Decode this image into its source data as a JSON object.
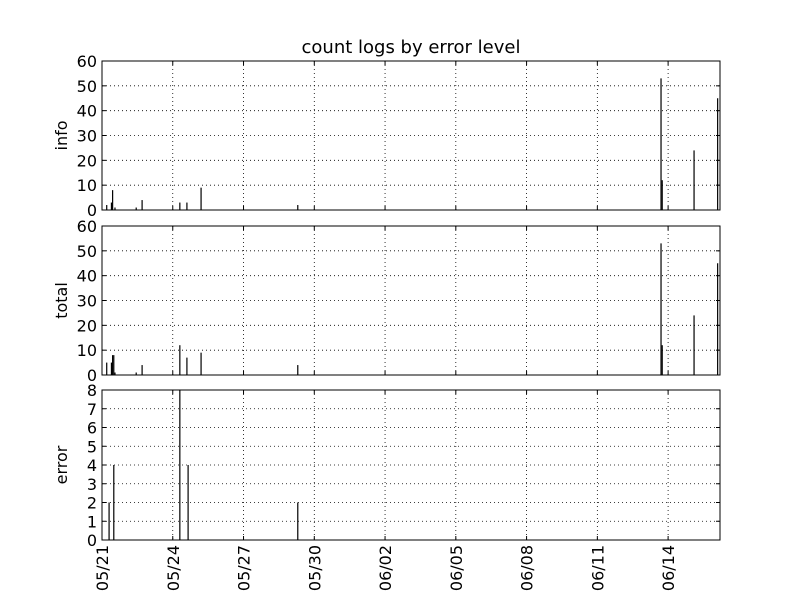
{
  "chart_data": {
    "type": "bar",
    "title": "count logs by error level",
    "x_start": "2015-05-21",
    "x_ticks": [
      "05/21",
      "05/24",
      "05/27",
      "05/30",
      "06/02",
      "06/05",
      "06/08",
      "06/11",
      "06/14"
    ],
    "grid": true,
    "panels": [
      {
        "ylabel": "info",
        "ylim": [
          0,
          60
        ],
        "yticks": [
          "0",
          "10",
          "20",
          "30",
          "40",
          "50",
          "60"
        ],
        "points": [
          {
            "day": 0.2,
            "value": 2
          },
          {
            "day": 0.4,
            "value": 3
          },
          {
            "day": 0.45,
            "value": 8
          },
          {
            "day": 0.55,
            "value": 1
          },
          {
            "day": 1.45,
            "value": 1
          },
          {
            "day": 1.7,
            "value": 4
          },
          {
            "day": 3.3,
            "value": 3
          },
          {
            "day": 3.6,
            "value": 3
          },
          {
            "day": 4.2,
            "value": 9
          },
          {
            "day": 8.3,
            "value": 2
          },
          {
            "day": 23.7,
            "value": 53
          },
          {
            "day": 23.75,
            "value": 12
          },
          {
            "day": 25.1,
            "value": 24
          },
          {
            "day": 26.1,
            "value": 45
          }
        ]
      },
      {
        "ylabel": "total",
        "ylim": [
          0,
          60
        ],
        "yticks": [
          "0",
          "10",
          "20",
          "30",
          "40",
          "50",
          "60"
        ],
        "points": [
          {
            "day": 0.2,
            "value": 5
          },
          {
            "day": 0.4,
            "value": 5
          },
          {
            "day": 0.45,
            "value": 8
          },
          {
            "day": 0.5,
            "value": 8
          },
          {
            "day": 0.55,
            "value": 1
          },
          {
            "day": 1.45,
            "value": 1
          },
          {
            "day": 1.7,
            "value": 4
          },
          {
            "day": 3.3,
            "value": 12
          },
          {
            "day": 3.6,
            "value": 7
          },
          {
            "day": 4.2,
            "value": 9
          },
          {
            "day": 8.3,
            "value": 4
          },
          {
            "day": 23.7,
            "value": 53
          },
          {
            "day": 23.75,
            "value": 12
          },
          {
            "day": 25.1,
            "value": 24
          },
          {
            "day": 26.1,
            "value": 45
          }
        ]
      },
      {
        "ylabel": "error",
        "ylim": [
          0,
          8
        ],
        "yticks": [
          "0",
          "1",
          "2",
          "3",
          "4",
          "5",
          "6",
          "7",
          "8"
        ],
        "points": [
          {
            "day": 0.3,
            "value": 2
          },
          {
            "day": 0.5,
            "value": 4
          },
          {
            "day": 3.3,
            "value": 8
          },
          {
            "day": 3.65,
            "value": 4
          },
          {
            "day": 8.3,
            "value": 2
          }
        ]
      }
    ]
  }
}
